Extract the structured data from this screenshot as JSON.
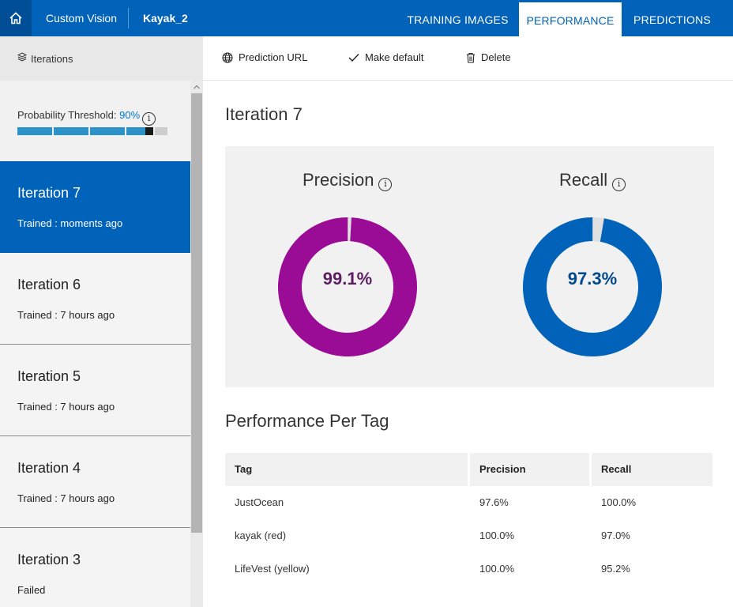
{
  "header": {
    "app_name": "Custom Vision",
    "project_name": "Kayak_2",
    "tabs": [
      {
        "label": "TRAINING IMAGES"
      },
      {
        "label": "PERFORMANCE",
        "active": true
      },
      {
        "label": "PREDICTIONS"
      }
    ]
  },
  "sidebar": {
    "header_label": "Iterations",
    "threshold": {
      "label": "Probability Threshold:",
      "value_text": "90%",
      "value": 0.9
    },
    "iterations": [
      {
        "title": "Iteration 7",
        "status": "Trained : moments ago",
        "active": true
      },
      {
        "title": "Iteration 6",
        "status": "Trained : 7 hours ago"
      },
      {
        "title": "Iteration 5",
        "status": "Trained : 7 hours ago"
      },
      {
        "title": "Iteration 4",
        "status": "Trained : 7 hours ago"
      },
      {
        "title": "Iteration 3",
        "status": "Failed"
      }
    ]
  },
  "toolbar": {
    "prediction_url": "Prediction URL",
    "make_default": "Make default",
    "delete": "Delete"
  },
  "main": {
    "iteration_title": "Iteration 7",
    "precision": {
      "label": "Precision",
      "value_text": "99.1%",
      "value": 99.1,
      "color": "#9a0b96"
    },
    "recall": {
      "label": "Recall",
      "value_text": "97.3%",
      "value": 97.3,
      "color": "#0062b8"
    },
    "per_tag_title": "Performance Per Tag",
    "table": {
      "headers": [
        "Tag",
        "Precision",
        "Recall"
      ],
      "rows": [
        [
          "JustOcean",
          "97.6%",
          "100.0%"
        ],
        [
          "kayak (red)",
          "100.0%",
          "97.0%"
        ],
        [
          "LifeVest (yellow)",
          "100.0%",
          "95.2%"
        ]
      ]
    }
  },
  "colors": {
    "brand": "#0062b8",
    "brand_dark": "#004e96",
    "precision": "#9a0b96",
    "recall": "#0062b8",
    "slider": "#2b93c7"
  }
}
